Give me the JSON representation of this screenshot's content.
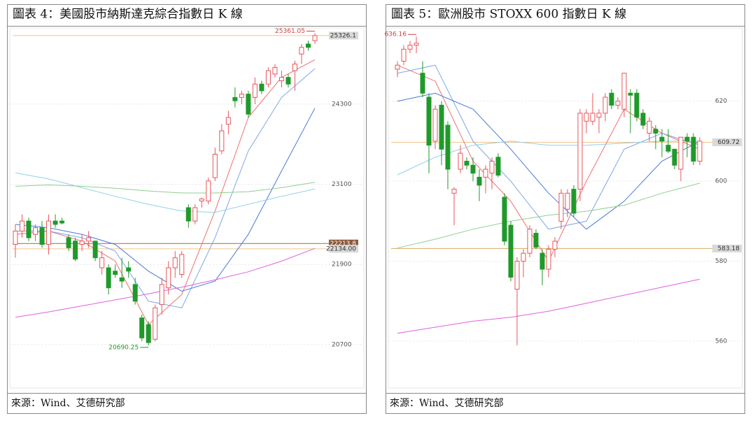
{
  "chart_data": [
    {
      "type": "candlestick",
      "title": "圖表 4：美國股市納斯達克綜合指數日 K 線",
      "source": "來源：Wind、艾德研究部",
      "ylim": [
        20050,
        25440
      ],
      "yticks": [
        20700,
        21900,
        23100,
        24300
      ],
      "grid": true,
      "up_color": "#e8555a",
      "down_color": "#1f9a2a",
      "candles": {
        "open": [
          22200,
          22400,
          22550,
          22350,
          22450,
          22200,
          22550,
          22550,
          22300,
          22250,
          22200,
          22250,
          22250,
          21850,
          21850,
          21800,
          21700,
          21850,
          21600,
          21100,
          21000,
          20780,
          21300,
          21550,
          21850,
          21750,
          22750,
          22550,
          22850,
          22850,
          23200,
          23600,
          24000,
          24400,
          24400,
          24450,
          24400,
          24600,
          24600,
          24750,
          24650,
          24700,
          24800,
          25050,
          25200,
          25250
        ],
        "high": [
          22500,
          22650,
          22600,
          22500,
          22550,
          22650,
          22650,
          22600,
          22350,
          22300,
          22350,
          22400,
          22250,
          22100,
          21900,
          21900,
          22000,
          21950,
          21700,
          21150,
          21050,
          21300,
          21700,
          21950,
          22100,
          22100,
          22800,
          22800,
          22900,
          23200,
          23650,
          24000,
          24200,
          24550,
          24500,
          24500,
          24700,
          24650,
          24850,
          24900,
          24800,
          24750,
          24950,
          25200,
          25250,
          25361.05
        ],
        "low": [
          22000,
          22300,
          22250,
          22250,
          22150,
          22050,
          22450,
          22500,
          22100,
          21950,
          22100,
          22150,
          21950,
          21750,
          21450,
          21700,
          21550,
          21700,
          21300,
          20750,
          20690.25,
          20750,
          21150,
          21450,
          21700,
          21700,
          22450,
          22500,
          22750,
          22800,
          23150,
          23550,
          23850,
          24250,
          24300,
          24100,
          24300,
          24450,
          24550,
          24700,
          24550,
          24550,
          24500,
          24900,
          25100,
          25200
        ],
        "close": [
          22400,
          22550,
          22300,
          22450,
          22200,
          22550,
          22500,
          22520,
          22150,
          21980,
          22250,
          22300,
          22000,
          22000,
          21550,
          21750,
          21650,
          21800,
          21350,
          20800,
          20730,
          21250,
          21600,
          21850,
          22000,
          22050,
          22550,
          22750,
          22880,
          23150,
          23550,
          23900,
          24100,
          24350,
          24450,
          24150,
          24600,
          24500,
          24800,
          24850,
          24700,
          24600,
          24900,
          25150,
          25150,
          25326.1
        ]
      },
      "lines": [
        {
          "color": "#f07070",
          "x": [
            0,
            5,
            10,
            15,
            20,
            25,
            30,
            35,
            40,
            45
          ],
          "values": [
            22350,
            22400,
            22250,
            21950,
            21000,
            21450,
            22700,
            24100,
            24700,
            24965
          ]
        },
        {
          "color": "#7fa6e6",
          "x": [
            0,
            5,
            10,
            15,
            20,
            25,
            30,
            35,
            40,
            45
          ],
          "values": [
            22400,
            22400,
            22300,
            22100,
            21350,
            21250,
            22300,
            23600,
            24400,
            24830
          ]
        },
        {
          "color": "#4a78d8",
          "x": [
            0,
            5,
            10,
            15,
            20,
            25,
            30,
            35,
            40,
            45
          ],
          "values": [
            22500,
            22450,
            22350,
            22200,
            21800,
            21500,
            21650,
            22350,
            23300,
            24240
          ]
        },
        {
          "color": "#8fd0e8",
          "x": [
            0,
            5,
            10,
            15,
            20,
            25,
            30,
            35,
            40,
            45
          ],
          "values": [
            23270,
            23180,
            23050,
            22920,
            22800,
            22700,
            22680,
            22800,
            22920,
            23030
          ]
        },
        {
          "color": "#8fcf8f",
          "x": [
            0,
            5,
            10,
            15,
            20,
            25,
            30,
            35,
            40,
            45
          ],
          "values": [
            23070,
            23090,
            23070,
            23040,
            23000,
            22970,
            22970,
            22990,
            23050,
            23130
          ]
        },
        {
          "color": "#e060e0",
          "x": [
            0,
            5,
            10,
            15,
            20,
            25,
            30,
            35,
            40,
            45
          ],
          "values": [
            21110,
            21190,
            21280,
            21370,
            21460,
            21560,
            21670,
            21790,
            21950,
            22140
          ]
        }
      ],
      "hlines": [
        {
          "value": 25326.1,
          "color": "#f4c48a",
          "box_color": "#d9d9d9",
          "text_color": "#333333"
        },
        {
          "value": 22213.8,
          "color": "#9c6a4a",
          "box_color": "#8b5a3c",
          "text_color": "#ffffff"
        },
        {
          "value": 22134,
          "label": "22134.00",
          "color": "#f4c48a",
          "box_color": "#d9d9d9",
          "text_color": "#333333"
        }
      ],
      "annotations": [
        {
          "value": 25361.05,
          "color": "#d04040"
        },
        {
          "value": 20690.25,
          "color": "#1f9a2a"
        }
      ]
    },
    {
      "type": "candlestick",
      "title": "圖表 5：歐洲股市 STOXX 600 指數日 K 線",
      "source": "來源：Wind、艾德研究部",
      "ylim": [
        548.3,
        638.3
      ],
      "yticks": [
        560,
        580,
        600,
        620
      ],
      "grid": true,
      "up_color": "#e8555a",
      "down_color": "#1f9a2a",
      "candles": {
        "open": [
          628,
          630,
          633,
          634,
          627,
          621,
          610,
          619,
          614,
          597,
          603,
          605,
          604,
          601,
          601,
          602,
          606,
          596,
          589,
          573,
          580,
          582,
          587,
          582,
          578,
          583,
          590,
          593,
          598,
          598,
          615,
          615,
          616,
          617,
          622,
          619,
          618,
          622,
          622,
          617,
          612,
          613,
          611,
          609,
          608,
          603,
          611,
          611,
          605
        ],
        "high": [
          630,
          634,
          635,
          636.16,
          630,
          622,
          619,
          620,
          615,
          598.5,
          609,
          606,
          606,
          603,
          604,
          606,
          607,
          597,
          590,
          581,
          583,
          589,
          588,
          583,
          584,
          586,
          598,
          598,
          599,
          618,
          618,
          622,
          618,
          622,
          623,
          621,
          627,
          623,
          623,
          618,
          616,
          614,
          613,
          613,
          608,
          611,
          612,
          612,
          611
        ],
        "low": [
          626,
          629,
          632,
          632,
          621,
          602,
          608,
          604,
          598,
          589,
          602,
          603,
          600,
          595,
          597,
          598,
          601,
          584,
          575,
          559,
          576,
          581,
          583,
          574,
          576,
          581,
          588,
          591,
          591,
          595,
          612,
          614,
          612,
          615,
          618,
          618,
          616,
          612,
          615,
          613,
          610,
          608,
          606,
          607,
          603,
          600,
          606,
          604,
          604
        ],
        "close": [
          629,
          633,
          634,
          634.5,
          622,
          609,
          618,
          608,
          603,
          598,
          607,
          604,
          602,
          599,
          603,
          605,
          601.5,
          585,
          576,
          580,
          582,
          588,
          583.5,
          578,
          583,
          585,
          597,
          597,
          592,
          617,
          617,
          617,
          617,
          621,
          619,
          620,
          627,
          621.5,
          616,
          614,
          615,
          612,
          610,
          607.5,
          604,
          611,
          610,
          605,
          610
        ]
      },
      "lines": [
        {
          "color": "#f07070",
          "x": [
            0,
            6,
            12,
            18,
            24,
            30,
            36,
            42,
            48
          ],
          "values": [
            629,
            625,
            605,
            595,
            580,
            600,
            618,
            612,
            608
          ]
        },
        {
          "color": "#7fa6e6",
          "x": [
            0,
            6,
            12,
            18,
            24,
            30,
            36,
            42,
            48
          ],
          "values": [
            627,
            629,
            610,
            600,
            588,
            590,
            608,
            612,
            609
          ]
        },
        {
          "color": "#4a78d8",
          "x": [
            0,
            6,
            12,
            18,
            24,
            30,
            36,
            42,
            48
          ],
          "values": [
            620,
            622,
            618,
            608,
            597,
            588,
            595,
            605,
            610
          ]
        },
        {
          "color": "#8fd0e8",
          "x": [
            0,
            6,
            12,
            18,
            24,
            30,
            36,
            42,
            48
          ],
          "values": [
            601.6,
            606,
            609,
            610,
            609,
            609,
            609.5,
            610,
            610
          ]
        },
        {
          "color": "#8fcf8f",
          "x": [
            0,
            6,
            12,
            18,
            24,
            30,
            36,
            42,
            48
          ],
          "values": [
            583.3,
            585.5,
            588,
            590,
            591.5,
            592.5,
            594,
            597,
            599.5
          ]
        },
        {
          "color": "#e060e0",
          "x": [
            0,
            6,
            12,
            18,
            24,
            30,
            36,
            42,
            48
          ],
          "values": [
            562,
            563.5,
            565,
            566,
            567.5,
            569.5,
            571.5,
            573.5,
            575.5
          ]
        }
      ],
      "hlines": [
        {
          "value": 609.72,
          "color": "#f4c48a",
          "box_color": "#d9d9d9",
          "text_color": "#333333"
        },
        {
          "value": 583.18,
          "color": "#d9a860",
          "box_color": "#d9d9d9",
          "text_color": "#333333"
        }
      ],
      "annotations": [
        {
          "value": 636.16,
          "color": "#d04040"
        }
      ]
    }
  ]
}
